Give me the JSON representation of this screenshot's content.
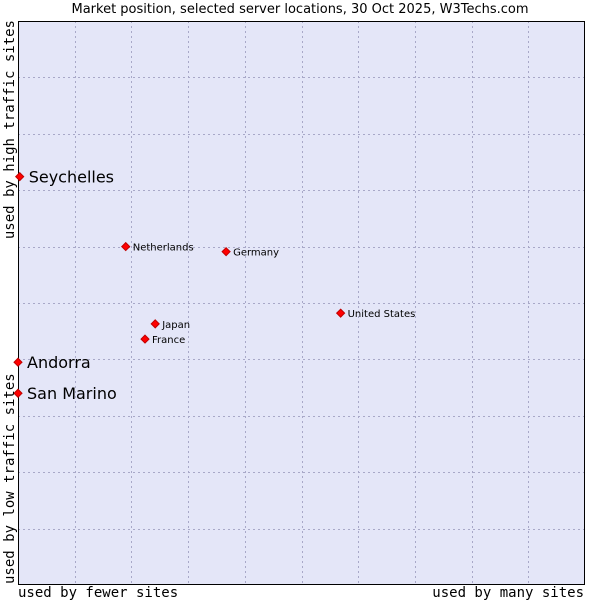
{
  "chart_data": {
    "type": "scatter",
    "title": "Market position, selected server locations, 30 Oct 2025, W3Techs.com",
    "xlabel_left": "used by fewer sites",
    "xlabel_right": "used by many sites",
    "ylabel_bottom": "used by low traffic sites",
    "ylabel_top": "used by high traffic sites",
    "xlim": [
      0,
      100
    ],
    "ylim": [
      0,
      100
    ],
    "grid": true,
    "colors": {
      "plot_bg": "#e4e6f8",
      "grid": "#a8a8c8",
      "point": "#ff0000",
      "point_stroke": "#c00000"
    },
    "points": [
      {
        "label": "Seychelles",
        "x": 0.3,
        "y": 72.4,
        "emphasis": true
      },
      {
        "label": "Netherlands",
        "x": 19.0,
        "y": 60.0,
        "emphasis": false
      },
      {
        "label": "Germany",
        "x": 36.7,
        "y": 59.1,
        "emphasis": false
      },
      {
        "label": "United States",
        "x": 56.9,
        "y": 48.2,
        "emphasis": false
      },
      {
        "label": "Japan",
        "x": 24.2,
        "y": 46.3,
        "emphasis": false
      },
      {
        "label": "France",
        "x": 22.4,
        "y": 43.6,
        "emphasis": false
      },
      {
        "label": "Andorra",
        "x": 0.0,
        "y": 39.5,
        "emphasis": true
      },
      {
        "label": "San Marino",
        "x": 0.0,
        "y": 34.0,
        "emphasis": true
      }
    ]
  }
}
